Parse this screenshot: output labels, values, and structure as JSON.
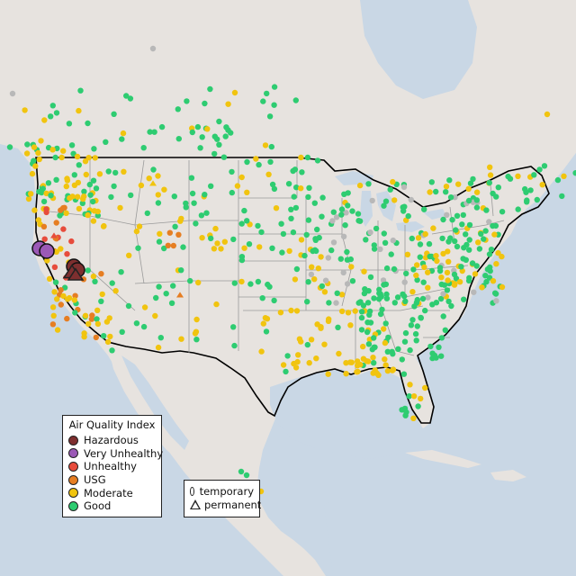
{
  "map": {
    "colors": {
      "ocean": "#c8d6e4",
      "land": "#e6e3df",
      "land_alt": "#d8dcd1",
      "state_border": "#999999",
      "country_border": "#000000",
      "hazardous": "#7e2f2f",
      "very_unhealthy": "#9b59b6",
      "unhealthy": "#e74c3c",
      "usg": "#e67e22",
      "moderate": "#f1c40f",
      "good": "#2ecc71",
      "no_data": "#b8b8b8"
    }
  },
  "legend": {
    "title": "Air Quality Index",
    "items": [
      {
        "label": "Hazardous",
        "color": "#7e2f2f"
      },
      {
        "label": "Very Unhealthy",
        "color": "#9b59b6"
      },
      {
        "label": "Unhealthy",
        "color": "#e74c3c"
      },
      {
        "label": "USG",
        "color": "#e67e22"
      },
      {
        "label": "Moderate",
        "color": "#f1c40f"
      },
      {
        "label": "Good",
        "color": "#2ecc71"
      }
    ]
  },
  "monitor_types": {
    "temporary": "temporary",
    "permanent": "permanent"
  }
}
